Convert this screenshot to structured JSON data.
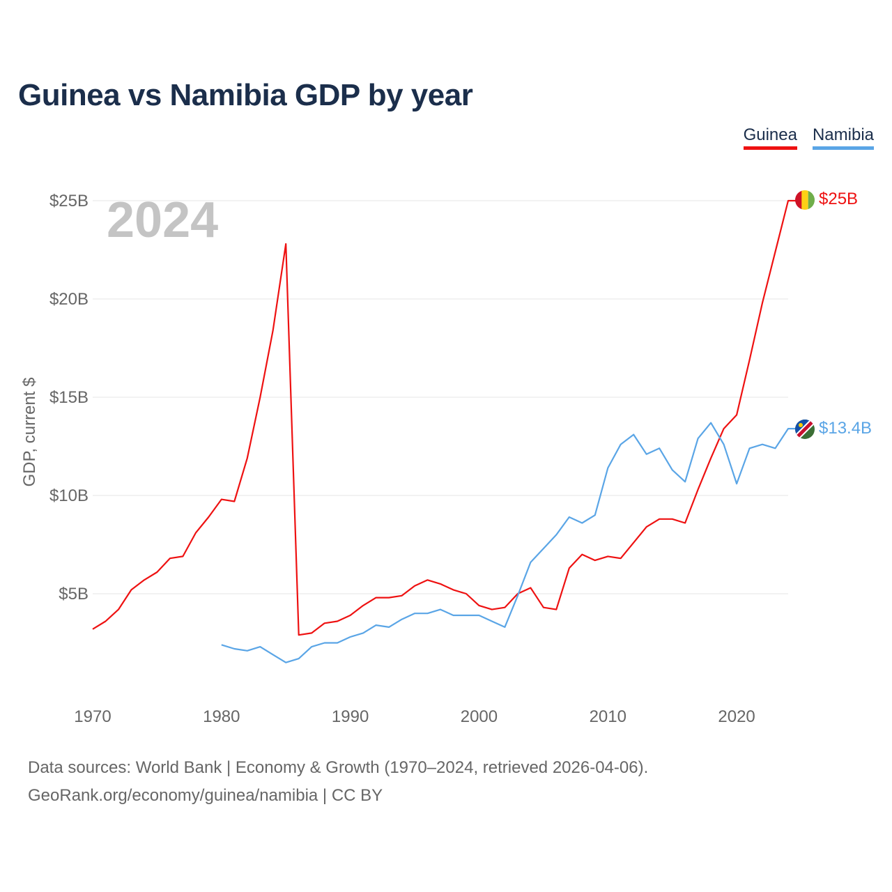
{
  "title": "Guinea vs Namibia GDP by year",
  "legend": [
    {
      "name": "Guinea",
      "color": "#ee1111"
    },
    {
      "name": "Namibia",
      "color": "#5aa5e6"
    }
  ],
  "year_watermark": "2024",
  "end_labels": {
    "guinea": "$25B",
    "namibia": "$13.4B"
  },
  "footer": {
    "line1": "Data sources: World Bank | Economy & Growth (1970–2024, retrieved 2026-04-06).",
    "line2": "GeoRank.org/economy/guinea/namibia | CC BY"
  },
  "chart_data": {
    "type": "line",
    "title": "Guinea vs Namibia GDP by year",
    "xlabel": "",
    "ylabel": "GDP, current $",
    "xlim": [
      1970,
      2024
    ],
    "ylim": [
      0,
      25
    ],
    "yunit": "billions USD",
    "xticks": [
      1970,
      1980,
      1990,
      2000,
      2010,
      2020
    ],
    "xtick_labels": [
      "1970",
      "1980",
      "1990",
      "2000",
      "2010",
      "2020"
    ],
    "yticks": [
      5,
      10,
      15,
      20,
      25
    ],
    "ytick_labels": [
      "$5B",
      "$10B",
      "$15B",
      "$20B",
      "$25B"
    ],
    "series": [
      {
        "name": "Guinea",
        "color": "#ee1111",
        "x": [
          1970,
          1971,
          1972,
          1973,
          1974,
          1975,
          1976,
          1977,
          1978,
          1979,
          1980,
          1981,
          1982,
          1983,
          1984,
          1985,
          1986,
          1987,
          1988,
          1989,
          1990,
          1991,
          1992,
          1993,
          1994,
          1995,
          1996,
          1997,
          1998,
          1999,
          2000,
          2001,
          2002,
          2003,
          2004,
          2005,
          2006,
          2007,
          2008,
          2009,
          2010,
          2011,
          2012,
          2013,
          2014,
          2015,
          2016,
          2017,
          2018,
          2019,
          2020,
          2021,
          2022,
          2023,
          2024
        ],
        "values": [
          3.2,
          3.6,
          4.2,
          5.2,
          5.7,
          6.1,
          6.8,
          6.9,
          8.1,
          8.9,
          9.8,
          9.7,
          11.9,
          15.0,
          18.4,
          22.8,
          2.9,
          3.0,
          3.5,
          3.6,
          3.9,
          4.4,
          4.8,
          4.8,
          4.9,
          5.4,
          5.7,
          5.5,
          5.2,
          5.0,
          4.4,
          4.2,
          4.3,
          5.0,
          5.3,
          4.3,
          4.2,
          6.3,
          7.0,
          6.7,
          6.9,
          6.8,
          7.6,
          8.4,
          8.8,
          8.8,
          8.6,
          10.3,
          11.9,
          13.4,
          14.1,
          16.9,
          19.8,
          22.4,
          25.0
        ]
      },
      {
        "name": "Namibia",
        "color": "#5aa5e6",
        "x": [
          1980,
          1981,
          1982,
          1983,
          1984,
          1985,
          1986,
          1987,
          1988,
          1989,
          1990,
          1991,
          1992,
          1993,
          1994,
          1995,
          1996,
          1997,
          1998,
          1999,
          2000,
          2001,
          2002,
          2003,
          2004,
          2005,
          2006,
          2007,
          2008,
          2009,
          2010,
          2011,
          2012,
          2013,
          2014,
          2015,
          2016,
          2017,
          2018,
          2019,
          2020,
          2021,
          2022,
          2023,
          2024
        ],
        "values": [
          2.4,
          2.2,
          2.1,
          2.3,
          1.9,
          1.5,
          1.7,
          2.3,
          2.5,
          2.5,
          2.8,
          3.0,
          3.4,
          3.3,
          3.7,
          4.0,
          4.0,
          4.2,
          3.9,
          3.9,
          3.9,
          3.6,
          3.3,
          4.9,
          6.6,
          7.3,
          8.0,
          8.9,
          8.6,
          9.0,
          11.4,
          12.6,
          13.1,
          12.1,
          12.4,
          11.3,
          10.7,
          12.9,
          13.7,
          12.6,
          10.6,
          12.4,
          12.6,
          12.4,
          13.4
        ]
      }
    ]
  }
}
